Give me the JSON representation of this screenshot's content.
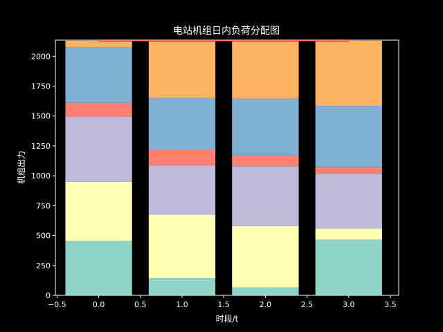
{
  "chart_data": {
    "type": "bar",
    "stacked": true,
    "title": "电站机组日内负荷分配图",
    "xlabel": "时段/t",
    "ylabel": "机组出力",
    "categories": [
      0,
      1,
      2,
      3
    ],
    "xlim": [
      -0.52,
      3.6
    ],
    "ylim": [
      0,
      2135
    ],
    "xticks": [
      "−0.5",
      "0.0",
      "0.5",
      "1.0",
      "1.5",
      "2.0",
      "2.5",
      "3.0",
      "3.5"
    ],
    "xtick_values": [
      -0.5,
      0.0,
      0.5,
      1.0,
      1.5,
      2.0,
      2.5,
      3.0,
      3.5
    ],
    "yticks": [
      "0",
      "250",
      "500",
      "750",
      "1000",
      "1250",
      "1500",
      "1750",
      "2000"
    ],
    "ytick_values": [
      0,
      250,
      500,
      750,
      1000,
      1250,
      1500,
      1750,
      2000
    ],
    "grid": false,
    "legend": "none",
    "background": "#000000",
    "series": [
      {
        "values": [
          455,
          145,
          65,
          465
        ],
        "color": "#8dd3c7"
      },
      {
        "values": [
          495,
          530,
          515,
          95
        ],
        "color": "#ffffb3"
      },
      {
        "values": [
          545,
          410,
          500,
          460
        ],
        "color": "#bebada"
      },
      {
        "values": [
          115,
          130,
          95,
          55
        ],
        "color": "#fb8072"
      },
      {
        "values": [
          465,
          435,
          470,
          510
        ],
        "color": "#80b1d3"
      },
      {
        "values": [
          55,
          480,
          485,
          545
        ],
        "color": "#fdb462"
      }
    ],
    "total_line": {
      "value": 2130,
      "x_range": [
        0.0,
        3.0
      ],
      "color": "#ff0000"
    }
  }
}
